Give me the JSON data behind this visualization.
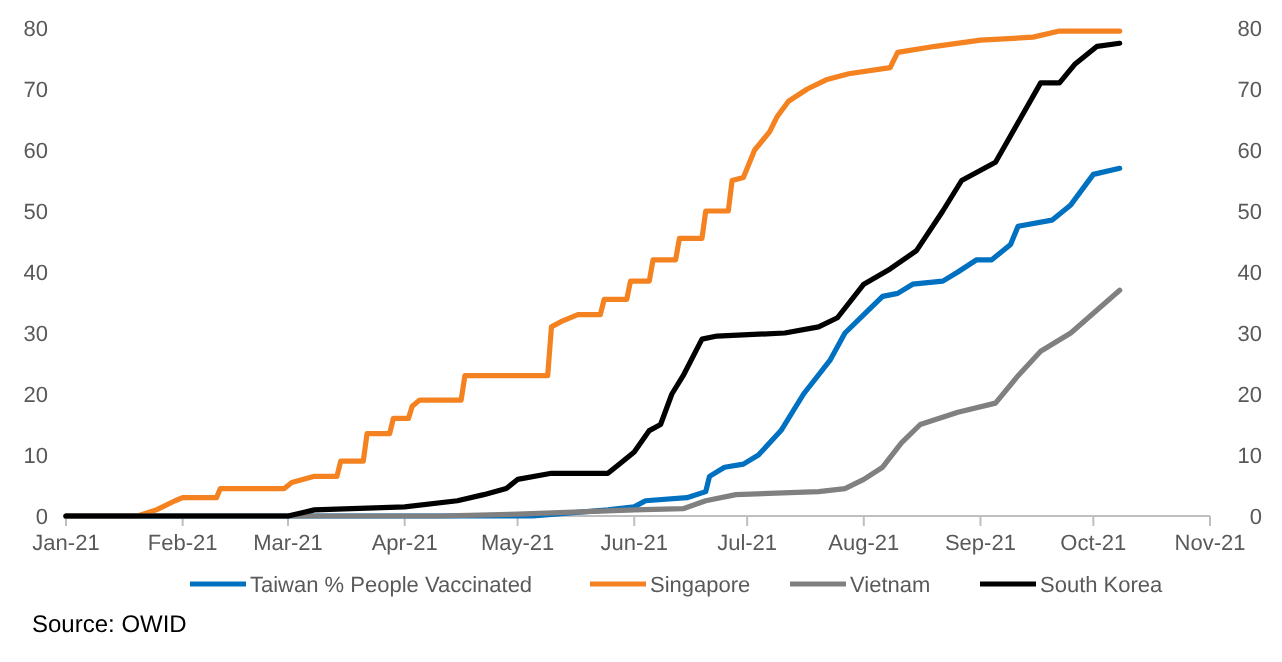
{
  "chart_data": {
    "type": "line",
    "annotations": [
      "Source: OWID"
    ],
    "legend": "bottom",
    "line_style": "solid",
    "marker": "none",
    "xlim": [
      "2021-01-01",
      "2021-11-01"
    ],
    "xticks": [
      {
        "value": "2021-01-01",
        "label": "Jan-21"
      },
      {
        "value": "2021-02-01",
        "label": "Feb-21"
      },
      {
        "value": "2021-03-01",
        "label": "Mar-21"
      },
      {
        "value": "2021-04-01",
        "label": "Apr-21"
      },
      {
        "value": "2021-05-01",
        "label": "May-21"
      },
      {
        "value": "2021-06-01",
        "label": "Jun-21"
      },
      {
        "value": "2021-07-01",
        "label": "Jul-21"
      },
      {
        "value": "2021-08-01",
        "label": "Aug-21"
      },
      {
        "value": "2021-09-01",
        "label": "Sep-21"
      },
      {
        "value": "2021-10-01",
        "label": "Oct-21"
      },
      {
        "value": "2021-11-01",
        "label": "Nov-21"
      }
    ],
    "ylim": [
      0,
      80
    ],
    "yticks": [
      0,
      10,
      20,
      30,
      40,
      50,
      60,
      70,
      80
    ],
    "y2lim": [
      0,
      80
    ],
    "y2ticks": [
      0,
      10,
      20,
      30,
      40,
      50,
      60,
      70,
      80
    ],
    "series": [
      {
        "name": "Taiwan % People Vaccinated",
        "color": "#0070c0",
        "x": [
          "2021-01-01",
          "2021-05-05",
          "2021-05-25",
          "2021-06-01",
          "2021-06-04",
          "2021-06-15",
          "2021-06-20",
          "2021-06-21",
          "2021-06-25",
          "2021-06-30",
          "2021-07-04",
          "2021-07-10",
          "2021-07-16",
          "2021-07-23",
          "2021-07-27",
          "2021-08-01",
          "2021-08-06",
          "2021-08-10",
          "2021-08-14",
          "2021-08-22",
          "2021-08-26",
          "2021-08-31",
          "2021-09-04",
          "2021-09-09",
          "2021-09-11",
          "2021-09-20",
          "2021-09-25",
          "2021-10-01",
          "2021-10-08"
        ],
        "values": [
          0,
          0,
          1,
          1.5,
          2.5,
          3,
          4,
          6.5,
          8,
          8.5,
          10,
          14,
          20,
          25.5,
          30,
          33,
          36,
          36.5,
          38,
          38.5,
          40,
          42,
          42,
          44.5,
          47.5,
          48.5,
          51,
          56,
          57
        ]
      },
      {
        "name": "Singapore",
        "color": "#f58220",
        "x": [
          "2021-01-01",
          "2021-01-20",
          "2021-01-25",
          "2021-01-30",
          "2021-02-01",
          "2021-02-10",
          "2021-02-11",
          "2021-02-28",
          "2021-03-02",
          "2021-03-08",
          "2021-03-14",
          "2021-03-15",
          "2021-03-21",
          "2021-03-22",
          "2021-03-28",
          "2021-03-29",
          "2021-04-02",
          "2021-04-03",
          "2021-04-05",
          "2021-04-16",
          "2021-04-17",
          "2021-05-09",
          "2021-05-10",
          "2021-05-13",
          "2021-05-17",
          "2021-05-23",
          "2021-05-24",
          "2021-05-30",
          "2021-05-31",
          "2021-06-05",
          "2021-06-06",
          "2021-06-12",
          "2021-06-13",
          "2021-06-19",
          "2021-06-20",
          "2021-06-26",
          "2021-06-27",
          "2021-06-30",
          "2021-07-03",
          "2021-07-07",
          "2021-07-09",
          "2021-07-12",
          "2021-07-17",
          "2021-07-22",
          "2021-07-28",
          "2021-08-08",
          "2021-08-10",
          "2021-08-20",
          "2021-09-01",
          "2021-09-15",
          "2021-09-22",
          "2021-10-08"
        ],
        "values": [
          0,
          0,
          1,
          2.5,
          3,
          3,
          4.5,
          4.5,
          5.5,
          6.5,
          6.5,
          9,
          9,
          13.5,
          13.5,
          16,
          16,
          18,
          19,
          19,
          23,
          23,
          31,
          32,
          33,
          33,
          35.5,
          35.5,
          38.5,
          38.5,
          42,
          42,
          45.5,
          45.5,
          50,
          50,
          55,
          55.5,
          60,
          63,
          65.5,
          68,
          70,
          71.5,
          72.5,
          73.5,
          76,
          77,
          78,
          78.5,
          79.5,
          79.5
        ]
      },
      {
        "name": "Vietnam",
        "color": "#808080",
        "x": [
          "2021-01-01",
          "2021-04-10",
          "2021-05-01",
          "2021-06-01",
          "2021-06-14",
          "2021-06-20",
          "2021-06-28",
          "2021-07-20",
          "2021-07-27",
          "2021-08-01",
          "2021-08-06",
          "2021-08-11",
          "2021-08-16",
          "2021-08-26",
          "2021-09-05",
          "2021-09-11",
          "2021-09-17",
          "2021-09-25",
          "2021-10-08"
        ],
        "values": [
          0,
          0,
          0.3,
          1,
          1.2,
          2.5,
          3.5,
          4,
          4.5,
          6,
          8,
          12,
          15,
          17,
          18.5,
          23,
          27,
          30,
          37
        ]
      },
      {
        "name": "South Korea",
        "color": "#000000",
        "x": [
          "2021-01-01",
          "2021-03-01",
          "2021-03-08",
          "2021-04-01",
          "2021-04-15",
          "2021-04-22",
          "2021-04-28",
          "2021-05-01",
          "2021-05-10",
          "2021-05-25",
          "2021-05-28",
          "2021-06-01",
          "2021-06-05",
          "2021-06-08",
          "2021-06-11",
          "2021-06-14",
          "2021-06-19",
          "2021-06-23",
          "2021-07-11",
          "2021-07-20",
          "2021-07-25",
          "2021-08-01",
          "2021-08-08",
          "2021-08-15",
          "2021-08-22",
          "2021-08-27",
          "2021-09-05",
          "2021-09-11",
          "2021-09-17",
          "2021-09-22",
          "2021-09-26",
          "2021-10-02",
          "2021-10-08"
        ],
        "values": [
          0,
          0,
          1,
          1.5,
          2.5,
          3.5,
          4.5,
          6,
          7,
          7,
          8.5,
          10.5,
          14,
          15,
          20,
          23,
          29,
          29.5,
          30,
          31,
          32.5,
          38,
          40.5,
          43.5,
          50,
          55,
          58,
          64.5,
          71,
          71,
          74,
          77,
          77.5
        ]
      }
    ]
  }
}
